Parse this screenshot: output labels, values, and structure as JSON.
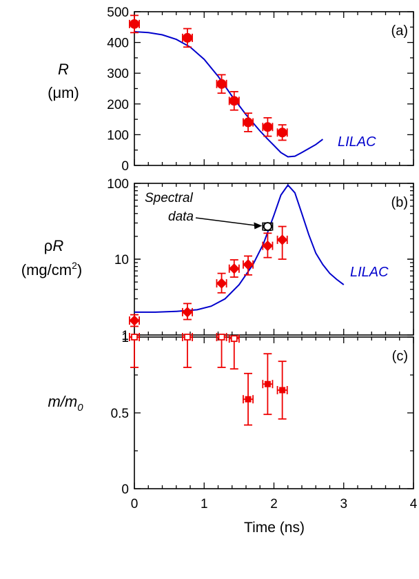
{
  "chart_data": [
    {
      "type": "scatter",
      "panel_label": "(a)",
      "ylabel_line1": "R",
      "ylabel_line2": "(μm)",
      "yscale": "linear",
      "ylim": [
        0,
        500
      ],
      "xlim": [
        0,
        4
      ],
      "yticks": [
        0,
        100,
        200,
        300,
        400,
        500
      ],
      "ytick_labels": [
        "0",
        "100",
        "200",
        "300",
        "400",
        "500"
      ],
      "series": [
        {
          "name": "LILAC",
          "kind": "line",
          "color": "#0000cc",
          "x": [
            0.0,
            0.2,
            0.4,
            0.6,
            0.8,
            1.0,
            1.2,
            1.4,
            1.6,
            1.8,
            1.9,
            2.0,
            2.1,
            2.2,
            2.3,
            2.4,
            2.5,
            2.6,
            2.7
          ],
          "y": [
            435,
            432,
            425,
            410,
            385,
            345,
            290,
            225,
            165,
            112,
            88,
            65,
            42,
            28,
            30,
            42,
            55,
            68,
            85
          ]
        },
        {
          "kind": "points",
          "marker": "circle",
          "color": "#ee0000",
          "points": [
            {
              "x": 0.0,
              "y": 460,
              "xerr": 0.07,
              "yerr": 28
            },
            {
              "x": 0.76,
              "y": 415,
              "xerr": 0.07,
              "yerr": 30
            },
            {
              "x": 1.25,
              "y": 265,
              "xerr": 0.07,
              "yerr": 30
            },
            {
              "x": 1.43,
              "y": 210,
              "xerr": 0.07,
              "yerr": 30
            },
            {
              "x": 1.63,
              "y": 140,
              "xerr": 0.07,
              "yerr": 30
            },
            {
              "x": 1.91,
              "y": 125,
              "xerr": 0.07,
              "yerr": 30
            },
            {
              "x": 2.12,
              "y": 107,
              "xerr": 0.07,
              "yerr": 25
            }
          ]
        }
      ]
    },
    {
      "type": "scatter",
      "panel_label": "(b)",
      "ylabel_line1": "ρ",
      "ylabel_line1_italic": "R",
      "ylabel_line2": "(mg/cm",
      "ylabel_line2_sup": "2",
      "ylabel_line2_end": ")",
      "yscale": "log",
      "ylim": [
        1,
        100
      ],
      "xlim": [
        0,
        4
      ],
      "yticks": [
        1,
        10,
        100
      ],
      "ytick_labels": [
        "1",
        "10",
        "100"
      ],
      "annotation": {
        "line1": "Spectral",
        "line2": "data"
      },
      "series": [
        {
          "name": "LILAC",
          "kind": "line",
          "color": "#0000cc",
          "x": [
            0.0,
            0.3,
            0.6,
            0.9,
            1.1,
            1.3,
            1.5,
            1.7,
            1.85,
            2.0,
            2.1,
            2.2,
            2.3,
            2.4,
            2.5,
            2.6,
            2.7,
            2.8,
            2.9,
            3.0
          ],
          "y": [
            2.0,
            2.0,
            2.05,
            2.15,
            2.4,
            3.0,
            4.6,
            8.5,
            16,
            38,
            70,
            95,
            75,
            40,
            21,
            12,
            8.5,
            6.5,
            5.4,
            4.6
          ]
        },
        {
          "kind": "points",
          "marker": "diamond",
          "color": "#ee0000",
          "points": [
            {
              "x": 0.0,
              "y": 1.55,
              "xerr": 0.07,
              "ylo": 1.3,
              "yhi": 1.85
            },
            {
              "x": 0.76,
              "y": 2.0,
              "xerr": 0.07,
              "ylo": 1.6,
              "yhi": 2.6
            },
            {
              "x": 1.25,
              "y": 4.8,
              "xerr": 0.07,
              "ylo": 3.6,
              "yhi": 6.5
            },
            {
              "x": 1.43,
              "y": 7.5,
              "xerr": 0.07,
              "ylo": 5.8,
              "yhi": 9.8
            },
            {
              "x": 1.63,
              "y": 8.5,
              "xerr": 0.07,
              "ylo": 6.2,
              "yhi": 11
            },
            {
              "x": 1.91,
              "y": 15,
              "xerr": 0.07,
              "ylo": 10.5,
              "yhi": 22
            },
            {
              "x": 2.12,
              "y": 18,
              "xerr": 0.07,
              "ylo": 10,
              "yhi": 27
            }
          ]
        },
        {
          "kind": "points",
          "marker": "open-circle",
          "color": "#000000",
          "points": [
            {
              "x": 1.91,
              "y": 27,
              "xerr": 0.07,
              "ylo": 24,
              "yhi": 30
            }
          ]
        }
      ]
    },
    {
      "type": "scatter",
      "panel_label": "(c)",
      "ylabel": "m/m",
      "ylabel_sub": "0",
      "yscale": "linear",
      "ylim": [
        0,
        1
      ],
      "xlim": [
        0,
        4
      ],
      "yticks": [
        0,
        0.5,
        1
      ],
      "ytick_labels": [
        "0",
        "0.5",
        "1"
      ],
      "xticks": [
        0,
        1,
        2,
        3,
        4
      ],
      "xtick_labels": [
        "0",
        "1",
        "2",
        "3",
        "4"
      ],
      "xlabel": "Time (ns)",
      "series": [
        {
          "kind": "points",
          "marker": "open-square",
          "color": "#ee0000",
          "points": [
            {
              "x": 0.0,
              "y": 1.0,
              "xerr": 0.07,
              "ylo": 0.8,
              "yhi": 1.0
            },
            {
              "x": 0.76,
              "y": 1.0,
              "xerr": 0.07,
              "ylo": 0.8,
              "yhi": 1.0
            },
            {
              "x": 1.25,
              "y": 1.0,
              "xerr": 0.07,
              "ylo": 0.8,
              "yhi": 1.0
            },
            {
              "x": 1.43,
              "y": 0.99,
              "xerr": 0.07,
              "ylo": 0.79,
              "yhi": 1.0
            }
          ]
        },
        {
          "kind": "points",
          "marker": "filled-square",
          "color": "#ee0000",
          "points": [
            {
              "x": 1.63,
              "y": 0.59,
              "xerr": 0.07,
              "ylo": 0.42,
              "yhi": 0.76
            },
            {
              "x": 1.91,
              "y": 0.69,
              "xerr": 0.07,
              "ylo": 0.49,
              "yhi": 0.89
            },
            {
              "x": 2.12,
              "y": 0.65,
              "xerr": 0.07,
              "ylo": 0.46,
              "yhi": 0.84
            }
          ]
        }
      ]
    }
  ]
}
